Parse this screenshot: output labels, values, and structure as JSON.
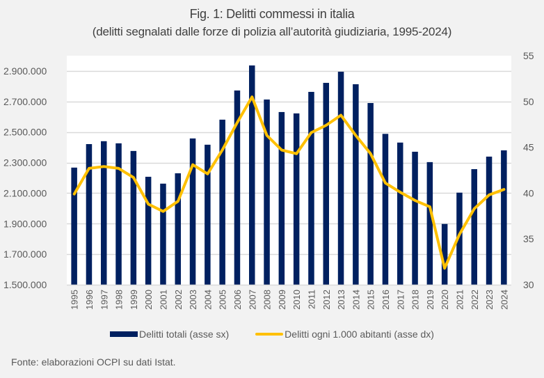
{
  "chart_data": {
    "type": "bar+line",
    "title": "Fig. 1: Delitti commessi in italia",
    "subtitle": "(delitti segnalati dalle forze di polizia all’autorità giudiziaria, 1995-2024)",
    "categories": [
      "1995",
      "1996",
      "1997",
      "1998",
      "1999",
      "2000",
      "2001",
      "2002",
      "2003",
      "2004",
      "2005",
      "2006",
      "2007",
      "2008",
      "2009",
      "2010",
      "2011",
      "2012",
      "2013",
      "2014",
      "2015",
      "2016",
      "2017",
      "2018",
      "2019",
      "2020",
      "2021",
      "2022",
      "2023",
      "2024"
    ],
    "series": [
      {
        "name": "Delitti totali (asse sx)",
        "type": "bar",
        "axis": "left",
        "color": "#002060",
        "values": [
          2267000,
          2421000,
          2440000,
          2426000,
          2376000,
          2207000,
          2162000,
          2230000,
          2458000,
          2417000,
          2581000,
          2772000,
          2936000,
          2713000,
          2631000,
          2622000,
          2763000,
          2822000,
          2895000,
          2813000,
          2690000,
          2488000,
          2431000,
          2371000,
          2303000,
          1898000,
          2103000,
          2257000,
          2339000,
          2380000
        ]
      },
      {
        "name": "Delitti ogni 1.000 abitanti (asse dx)",
        "type": "line",
        "axis": "right",
        "color": "#ffc000",
        "values": [
          39.9,
          42.7,
          42.9,
          42.7,
          41.7,
          38.8,
          38.0,
          39.1,
          43.1,
          42.1,
          44.7,
          47.7,
          50.5,
          46.3,
          44.7,
          44.3,
          46.6,
          47.4,
          48.5,
          46.3,
          44.3,
          41.1,
          40.1,
          39.2,
          38.5,
          31.8,
          35.5,
          38.3,
          39.8,
          40.4
        ]
      }
    ],
    "y_left": {
      "lim": [
        1500000,
        3000000
      ],
      "ticks": [
        1500000,
        1700000,
        1900000,
        2100000,
        2300000,
        2500000,
        2700000,
        2900000
      ],
      "tick_labels": [
        "1.500.000",
        "1.700.000",
        "1.900.000",
        "2.100.000",
        "2.300.000",
        "2.500.000",
        "2.700.000",
        "2.900.000"
      ]
    },
    "y_right": {
      "lim": [
        30,
        55
      ],
      "ticks": [
        30,
        35,
        40,
        45,
        50,
        55
      ],
      "tick_labels": [
        "30",
        "35",
        "40",
        "45",
        "50",
        "55"
      ]
    },
    "grid": true,
    "legend_position": "bottom",
    "xlabel": "",
    "ylabel": ""
  },
  "legend": {
    "bar_label": "Delitti totali (asse sx)",
    "line_label": "Delitti ogni 1.000 abitanti (asse dx)"
  },
  "footer": "Fonte: elaborazioni OCPI su dati Istat."
}
